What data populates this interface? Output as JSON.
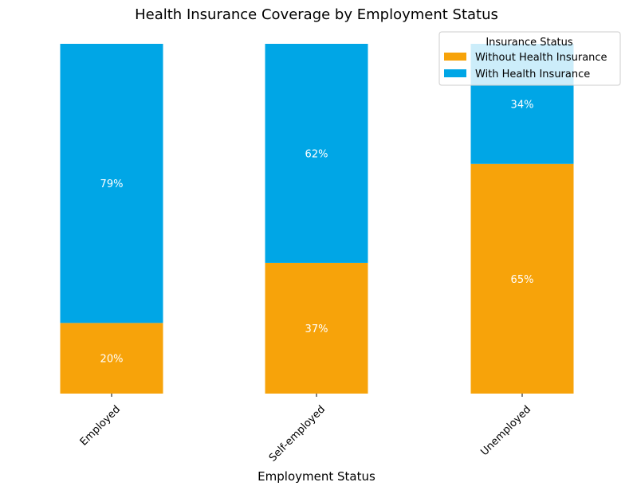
{
  "chart_data": {
    "type": "bar",
    "stacked": true,
    "title": "Health Insurance Coverage by Employment Status",
    "xlabel": "Employment Status",
    "ylabel": "",
    "categories": [
      "Employed",
      "Self-employed",
      "Unemployed"
    ],
    "series": [
      {
        "name": "Without Health Insurance",
        "values": [
          20,
          37,
          65
        ],
        "labels": [
          "20%",
          "37%",
          "65%"
        ],
        "color": "#f7a30a"
      },
      {
        "name": "With Health Insurance",
        "values": [
          79,
          62,
          34
        ],
        "labels": [
          "79%",
          "62%",
          "34%"
        ],
        "color": "#00a6e6"
      }
    ],
    "ylim": [
      0,
      99
    ],
    "grid": false,
    "legend": {
      "title": "Insurance Status",
      "position": "top-right"
    }
  }
}
